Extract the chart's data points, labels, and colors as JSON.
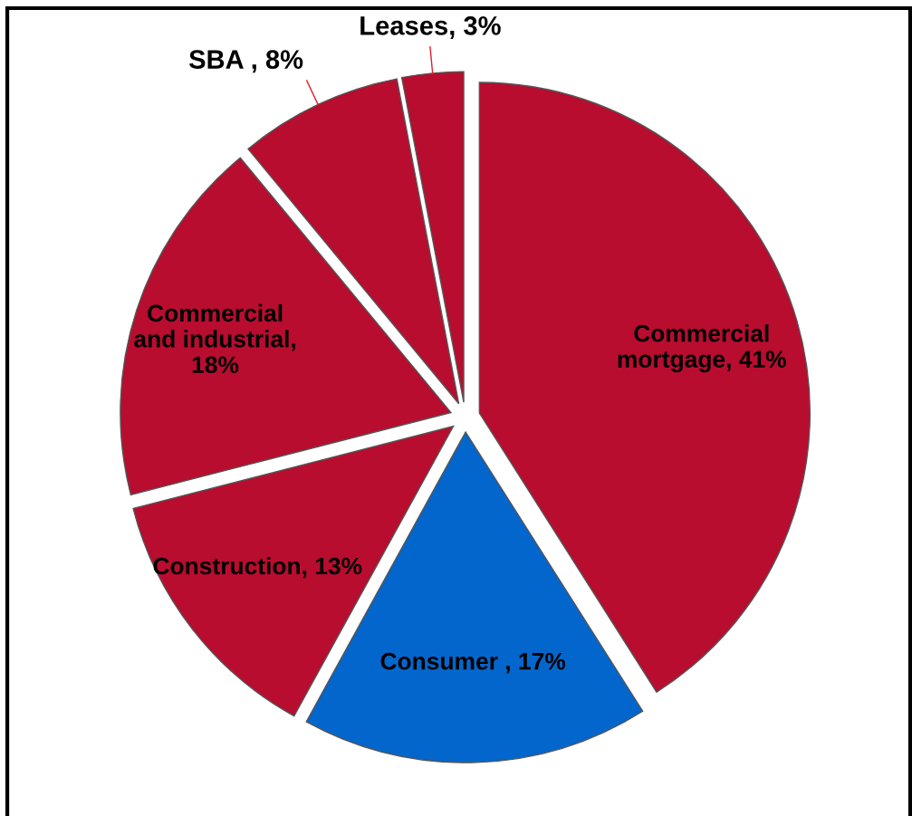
{
  "chart_data": {
    "type": "pie",
    "categories": [
      "Commercial\nmortgage, 41%",
      "Consumer , 17%",
      "Construction, 13%",
      "Commercial\nand industrial,\n18%",
      "SBA , 8%",
      "Leases, 3%"
    ],
    "values": [
      41,
      17,
      13,
      18,
      8,
      3
    ],
    "colors": [
      "#b80d2f",
      "#0366cc",
      "#b80d2f",
      "#b80d2f",
      "#b80d2f",
      "#b80d2f"
    ]
  }
}
